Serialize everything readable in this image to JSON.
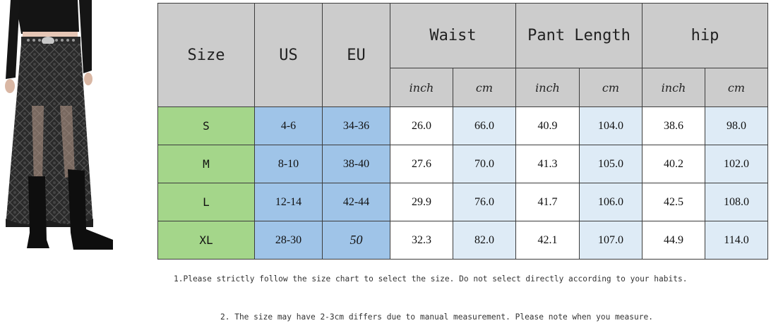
{
  "table": {
    "headers": {
      "size": "Size",
      "us": "US",
      "eu": "EU",
      "waist": "Waist",
      "pant_length": "Pant Length",
      "hip": "hip"
    },
    "units": {
      "inch": "inch",
      "cm": "cm"
    },
    "rows": [
      {
        "size": "S",
        "us": "4-6",
        "eu": "34-36",
        "waist_in": "26.0",
        "waist_cm": "66.0",
        "len_in": "40.9",
        "len_cm": "104.0",
        "hip_in": "38.6",
        "hip_cm": "98.0"
      },
      {
        "size": "M",
        "us": "8-10",
        "eu": "38-40",
        "waist_in": "27.6",
        "waist_cm": "70.0",
        "len_in": "41.3",
        "len_cm": "105.0",
        "hip_in": "40.2",
        "hip_cm": "102.0"
      },
      {
        "size": "L",
        "us": "12-14",
        "eu": "42-44",
        "waist_in": "29.9",
        "waist_cm": "76.0",
        "len_in": "41.7",
        "len_cm": "106.0",
        "hip_in": "42.5",
        "hip_cm": "108.0"
      },
      {
        "size": "XL",
        "us": "28-30",
        "eu": "50",
        "waist_in": "32.3",
        "waist_cm": "82.0",
        "len_in": "42.1",
        "len_cm": "107.0",
        "hip_in": "44.9",
        "hip_cm": "114.0"
      }
    ]
  },
  "notes": {
    "note1": "1.Please strictly follow the size chart to select the size. Do not select directly according to your habits.",
    "note2": "2. The size may have 2-3cm differs due to manual measurement. Please note when you measure."
  },
  "colors": {
    "header_gray": "#cccccc",
    "size_green": "#a4d68a",
    "us_eu_blue": "#9fc4e8",
    "cm_light_blue": "#deebf6"
  }
}
